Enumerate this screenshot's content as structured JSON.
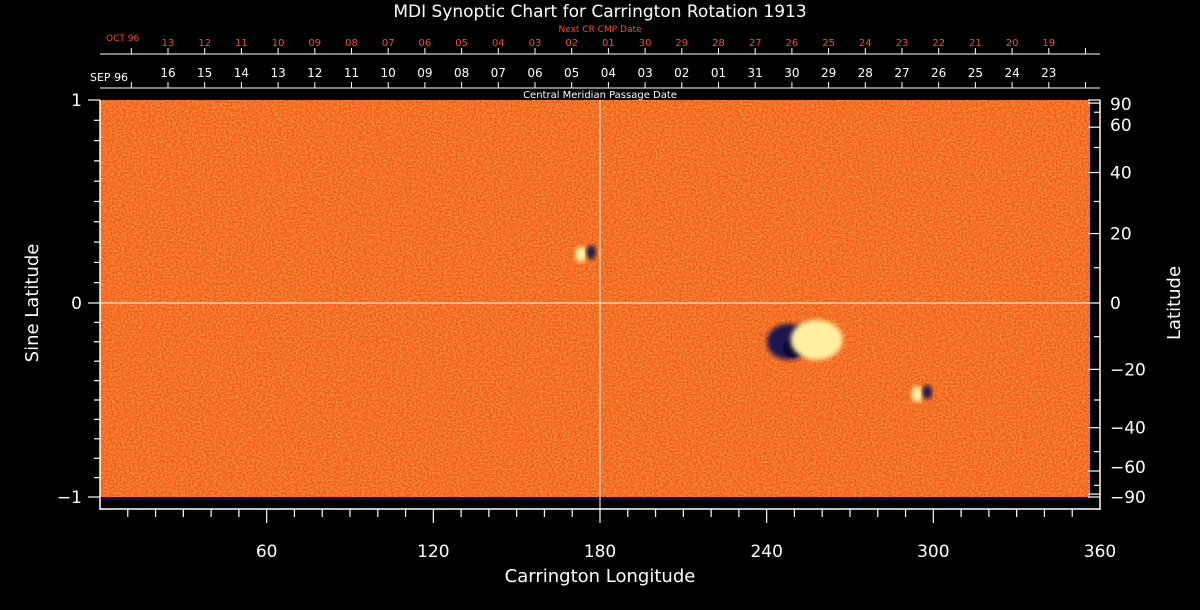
{
  "chart_data": {
    "type": "heatmap",
    "title": "MDI Synoptic Chart for Carrington Rotation 1913",
    "xlabel": "Carrington Longitude",
    "ylabel_left": "Sine Latitude",
    "ylabel_right": "Latitude",
    "xlim": [
      0,
      360
    ],
    "ylim": [
      -1,
      1
    ],
    "x_ticks": [
      60,
      120,
      180,
      240,
      300,
      360
    ],
    "y_ticks_left": [
      "1",
      "0",
      "−1"
    ],
    "y_ticks_right": [
      "90",
      "60",
      "40",
      "20",
      "0",
      "−20",
      "−40",
      "−60",
      "−90"
    ],
    "y_ticks_right_values": [
      90,
      60,
      40,
      20,
      0,
      -20,
      -40,
      -60,
      -90
    ],
    "cmp_axis": {
      "label": "Central Meridian Passage Date",
      "month_left": "SEP 96",
      "dates": [
        "16",
        "15",
        "14",
        "13",
        "12",
        "11",
        "10",
        "09",
        "08",
        "07",
        "06",
        "05",
        "04",
        "03",
        "02",
        "01",
        "31",
        "30",
        "29",
        "28",
        "27",
        "26",
        "25",
        "24",
        "23"
      ]
    },
    "next_cr_axis": {
      "label": "Next CR CMP Date",
      "month_left": "OCT 96",
      "dates": [
        "13",
        "12",
        "11",
        "10",
        "09",
        "08",
        "07",
        "06",
        "05",
        "04",
        "03",
        "02",
        "01",
        "30",
        "29",
        "28",
        "27",
        "26",
        "25",
        "24",
        "23",
        "22",
        "21",
        "20",
        "19"
      ]
    },
    "colors": {
      "background_field": "#f05a14",
      "positive": "#fff0a0",
      "negative": "#1a1450",
      "next_cr_text": "#ff4a2a",
      "axes": "#ffffff"
    },
    "regions": [
      {
        "name": "active region negative",
        "longitude": 248,
        "sine_latitude": -0.2,
        "polarity": "negative"
      },
      {
        "name": "active region positive",
        "longitude": 258,
        "sine_latitude": -0.19,
        "polarity": "positive"
      },
      {
        "name": "small bipole",
        "longitude": 175,
        "sine_latitude": 0.24,
        "polarity": "mixed"
      },
      {
        "name": "small bipole",
        "longitude": 296,
        "sine_latitude": -0.47,
        "polarity": "mixed"
      }
    ]
  }
}
